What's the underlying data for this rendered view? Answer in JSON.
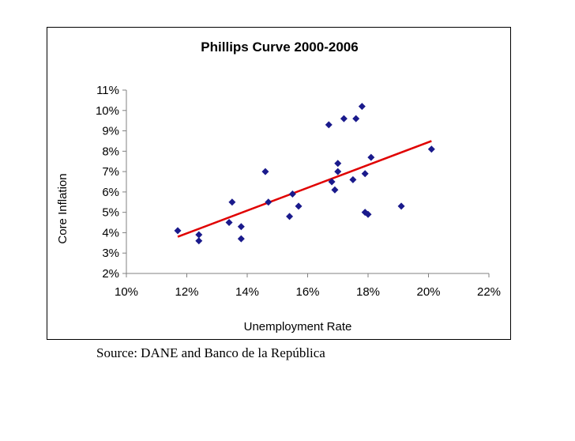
{
  "chart_data": {
    "type": "scatter",
    "title": "Phillips Curve 2000-2006",
    "xlabel": "Unemployment Rate",
    "ylabel": "Core Inflation",
    "xlim": [
      10,
      22
    ],
    "ylim": [
      2,
      11
    ],
    "x_ticks": [
      "10%",
      "12%",
      "14%",
      "16%",
      "18%",
      "20%",
      "22%"
    ],
    "y_ticks": [
      "2%",
      "3%",
      "4%",
      "5%",
      "6%",
      "7%",
      "8%",
      "9%",
      "10%",
      "11%"
    ],
    "x_tick_values": [
      10,
      12,
      14,
      16,
      18,
      20,
      22
    ],
    "y_tick_values": [
      2,
      3,
      4,
      5,
      6,
      7,
      8,
      9,
      10,
      11
    ],
    "grid": false,
    "legend": "none",
    "series": [
      {
        "color": "#1a1a8c",
        "marker": "diamond",
        "points": [
          [
            11.7,
            4.1
          ],
          [
            12.4,
            3.9
          ],
          [
            12.4,
            3.6
          ],
          [
            13.4,
            4.5
          ],
          [
            13.5,
            5.5
          ],
          [
            13.8,
            4.3
          ],
          [
            13.8,
            3.7
          ],
          [
            14.6,
            7.0
          ],
          [
            14.7,
            5.5
          ],
          [
            15.4,
            4.8
          ],
          [
            15.5,
            5.9
          ],
          [
            15.7,
            5.3
          ],
          [
            16.7,
            9.3
          ],
          [
            16.8,
            6.5
          ],
          [
            16.9,
            6.1
          ],
          [
            17.0,
            7.4
          ],
          [
            17.0,
            7.0
          ],
          [
            17.2,
            9.6
          ],
          [
            17.5,
            6.6
          ],
          [
            17.6,
            9.6
          ],
          [
            17.8,
            10.2
          ],
          [
            17.9,
            6.9
          ],
          [
            17.9,
            5.0
          ],
          [
            18.0,
            4.9
          ],
          [
            18.1,
            7.7
          ],
          [
            19.1,
            5.3
          ],
          [
            20.1,
            8.1
          ]
        ]
      }
    ],
    "trendline": {
      "color": "#e00000",
      "points": [
        [
          11.7,
          3.8
        ],
        [
          20.1,
          8.5
        ]
      ]
    }
  },
  "source_note": "Source: DANE and Banco de la República"
}
